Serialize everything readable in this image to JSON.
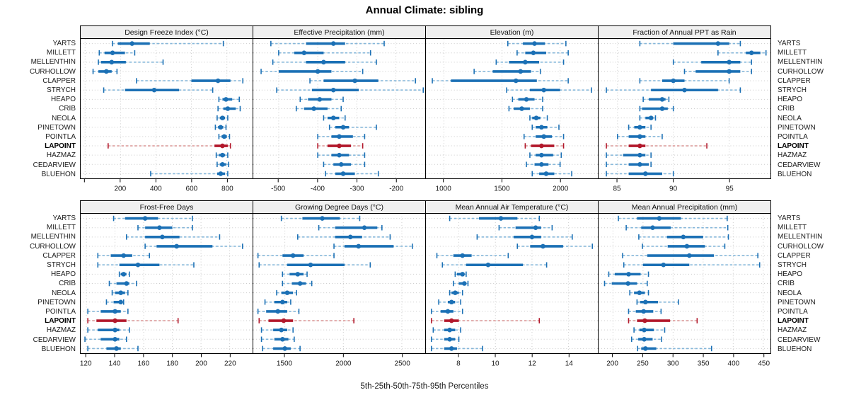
{
  "title": "Annual Climate: sibling",
  "xlabel": "5th-25th-50th-75th-95th Percentiles",
  "colors": {
    "series": "#1b70b5",
    "series_whisker": "#85b7da",
    "highlight": "#b2182b",
    "highlight_whisker": "#dc9a99",
    "strip_bg": "#f0f0f0",
    "grid": "#c9c9c9",
    "panel_border": "#000000"
  },
  "chart_data": {
    "type": "dotplot-percentiles",
    "percentiles": [
      5,
      25,
      50,
      75,
      95
    ],
    "layout": "2 rows x 4 cols, station labels on both sides",
    "grid": true,
    "stations": [
      "YARTS",
      "MILLETT",
      "MELLENTHIN",
      "CURHOLLOW",
      "CLAPPER",
      "STRYCH",
      "HEAPO",
      "CRIB",
      "NEOLA",
      "PINETOWN",
      "POINTLA",
      "LAPOINT",
      "HAZMAZ",
      "CEDARVIEW",
      "BLUEHON"
    ],
    "highlight_station": "LAPOINT",
    "panels": [
      {
        "title": "Design Freeze Index (°C)",
        "xlim": [
          -25,
          945
        ],
        "ticks": [
          200,
          400,
          600,
          800
        ],
        "unlabeled_ticks": [
          0
        ],
        "values": [
          [
            155,
            185,
            265,
            365,
            780
          ],
          [
            80,
            110,
            155,
            225,
            280
          ],
          [
            75,
            90,
            150,
            230,
            440
          ],
          [
            45,
            75,
            120,
            150,
            180
          ],
          [
            290,
            600,
            750,
            820,
            890
          ],
          [
            105,
            225,
            390,
            530,
            720
          ],
          [
            755,
            775,
            795,
            830,
            870
          ],
          [
            750,
            780,
            805,
            850,
            875
          ],
          [
            745,
            760,
            775,
            790,
            805
          ],
          [
            735,
            750,
            765,
            780,
            795
          ],
          [
            755,
            770,
            785,
            800,
            815
          ],
          [
            130,
            730,
            775,
            805,
            820
          ],
          [
            740,
            755,
            775,
            790,
            805
          ],
          [
            745,
            760,
            775,
            795,
            810
          ],
          [
            370,
            745,
            765,
            790,
            805
          ]
        ]
      },
      {
        "title": "Effective Precipitation (mm)",
        "xlim": [
          -565,
          -125
        ],
        "ticks": [
          -500,
          -400,
          -300,
          -200
        ],
        "unlabeled_ticks": [],
        "values": [
          [
            -520,
            -430,
            -360,
            -330,
            -230
          ],
          [
            -500,
            -460,
            -435,
            -385,
            -265
          ],
          [
            -515,
            -430,
            -385,
            -330,
            -250
          ],
          [
            -545,
            -500,
            -400,
            -365,
            -285
          ],
          [
            -420,
            -385,
            -305,
            -245,
            -150
          ],
          [
            -505,
            -415,
            -360,
            -295,
            -130
          ],
          [
            -445,
            -425,
            -395,
            -365,
            -335
          ],
          [
            -455,
            -435,
            -410,
            -375,
            -340
          ],
          [
            -385,
            -375,
            -360,
            -345,
            -330
          ],
          [
            -370,
            -355,
            -335,
            -320,
            -250
          ],
          [
            -400,
            -365,
            -345,
            -310,
            -280
          ],
          [
            -400,
            -375,
            -345,
            -315,
            -285
          ],
          [
            -400,
            -365,
            -345,
            -320,
            -280
          ],
          [
            -385,
            -360,
            -340,
            -315,
            -280
          ],
          [
            -380,
            -355,
            -335,
            -305,
            -245
          ]
        ]
      },
      {
        "title": "Elevation (m)",
        "xlim": [
          845,
          2325
        ],
        "ticks": [
          1000,
          1500,
          2000
        ],
        "unlabeled_ticks": [],
        "values": [
          [
            1550,
            1680,
            1780,
            1870,
            2050
          ],
          [
            1630,
            1700,
            1770,
            1880,
            2070
          ],
          [
            1450,
            1560,
            1700,
            1820,
            2030
          ],
          [
            1260,
            1420,
            1660,
            1750,
            1830
          ],
          [
            900,
            1060,
            1620,
            1800,
            2070
          ],
          [
            1540,
            1740,
            1860,
            2000,
            2270
          ],
          [
            1590,
            1640,
            1710,
            1780,
            1850
          ],
          [
            1560,
            1600,
            1670,
            1740,
            1850
          ],
          [
            1740,
            1760,
            1795,
            1830,
            1890
          ],
          [
            1760,
            1790,
            1840,
            1890,
            1990
          ],
          [
            1690,
            1790,
            1860,
            1930,
            2030
          ],
          [
            1700,
            1750,
            1840,
            1950,
            2030
          ],
          [
            1740,
            1790,
            1840,
            1940,
            2010
          ],
          [
            1710,
            1780,
            1840,
            1900,
            2000
          ],
          [
            1760,
            1820,
            1880,
            1950,
            2100
          ]
        ]
      },
      {
        "title": "Fraction of Annual PPT as Rain",
        "xlim": [
          83.3,
          98.7
        ],
        "ticks": [
          85,
          90,
          95
        ],
        "unlabeled_ticks": [],
        "values": [
          [
            87,
            90,
            94,
            95,
            96
          ],
          [
            94,
            96.5,
            97,
            97.8,
            98.3
          ],
          [
            90,
            92.5,
            95,
            96,
            97
          ],
          [
            91,
            92,
            95,
            96,
            97
          ],
          [
            87,
            89,
            90,
            91,
            95
          ],
          [
            84,
            88,
            91,
            94,
            96
          ],
          [
            87.3,
            87.8,
            89,
            89.3,
            89.6
          ],
          [
            87,
            87.2,
            89,
            89.5,
            90
          ],
          [
            87,
            87.5,
            88,
            88.2,
            88.4
          ],
          [
            86,
            86.5,
            87,
            87.5,
            88
          ],
          [
            85,
            86,
            87,
            87.5,
            89
          ],
          [
            84,
            86,
            87,
            87.5,
            93
          ],
          [
            84,
            85.5,
            87,
            87.5,
            88
          ],
          [
            84,
            86,
            87,
            87.8,
            88
          ],
          [
            84,
            86,
            87.5,
            89,
            90
          ]
        ]
      },
      {
        "title": "Frost-Free Days",
        "xlim": [
          116,
          236
        ],
        "ticks": [
          120,
          140,
          160,
          180,
          200,
          220
        ],
        "unlabeled_ticks": [],
        "values": [
          [
            139,
            147,
            161,
            170,
            194
          ],
          [
            156,
            161,
            171,
            180,
            194
          ],
          [
            148,
            161,
            173,
            185,
            213
          ],
          [
            161,
            169,
            183,
            208,
            229
          ],
          [
            128,
            137,
            146,
            152,
            164
          ],
          [
            128,
            143,
            156,
            171,
            195
          ],
          [
            143,
            144,
            146,
            148,
            150
          ],
          [
            136,
            141,
            148,
            150,
            155
          ],
          [
            138,
            140,
            144,
            147,
            149
          ],
          [
            134,
            139,
            144,
            145,
            146
          ],
          [
            121,
            130,
            140,
            144,
            149
          ],
          [
            121,
            127,
            140,
            148,
            184
          ],
          [
            121,
            128,
            140,
            143,
            150
          ],
          [
            119,
            130,
            140,
            143,
            148
          ],
          [
            121,
            134,
            141,
            144,
            156
          ]
        ]
      },
      {
        "title": "Growing Degree Days (°C)",
        "xlim": [
          1230,
          2700
        ],
        "ticks": [
          1500,
          2000,
          2500
        ],
        "unlabeled_ticks": [],
        "values": [
          [
            1470,
            1650,
            1820,
            1970,
            2140
          ],
          [
            1790,
            1930,
            2180,
            2290,
            2330
          ],
          [
            1610,
            1930,
            2060,
            2160,
            2400
          ],
          [
            1920,
            2010,
            2130,
            2430,
            2590
          ],
          [
            1270,
            1480,
            1570,
            1660,
            1920
          ],
          [
            1280,
            1520,
            1720,
            2010,
            2230
          ],
          [
            1480,
            1540,
            1610,
            1660,
            1690
          ],
          [
            1480,
            1560,
            1630,
            1680,
            1730
          ],
          [
            1430,
            1470,
            1520,
            1570,
            1600
          ],
          [
            1330,
            1410,
            1480,
            1520,
            1550
          ],
          [
            1270,
            1340,
            1440,
            1520,
            1620
          ],
          [
            1280,
            1360,
            1490,
            1570,
            2090
          ],
          [
            1300,
            1400,
            1470,
            1520,
            1570
          ],
          [
            1300,
            1410,
            1480,
            1530,
            1580
          ],
          [
            1310,
            1400,
            1500,
            1550,
            1630
          ]
        ]
      },
      {
        "title": "Mean Annual Air Temperature (°C)",
        "xlim": [
          6.2,
          15.6
        ],
        "ticks": [
          8,
          10,
          12,
          14
        ],
        "unlabeled_ticks": [],
        "values": [
          [
            7.5,
            9.1,
            10.3,
            11.2,
            12.4
          ],
          [
            10.2,
            11.1,
            12.2,
            12.5,
            13.1
          ],
          [
            9.0,
            11.0,
            12.0,
            12.5,
            14.2
          ],
          [
            11.2,
            11.9,
            12.6,
            13.7,
            15.3
          ],
          [
            6.8,
            7.7,
            8.2,
            8.7,
            10.7
          ],
          [
            7.1,
            8.4,
            9.6,
            11.5,
            12.8
          ],
          [
            7.8,
            7.9,
            8.2,
            8.3,
            8.4
          ],
          [
            7.7,
            8.0,
            8.3,
            8.4,
            8.5
          ],
          [
            7.5,
            7.6,
            7.8,
            8.0,
            8.2
          ],
          [
            6.9,
            7.4,
            7.6,
            7.8,
            8.1
          ],
          [
            6.5,
            7.0,
            7.4,
            7.7,
            8.2
          ],
          [
            6.5,
            7.2,
            7.6,
            8.0,
            12.4
          ],
          [
            6.6,
            7.2,
            7.5,
            7.8,
            8.1
          ],
          [
            6.5,
            7.2,
            7.5,
            7.8,
            8.0
          ],
          [
            6.5,
            7.2,
            7.6,
            7.9,
            9.3
          ]
        ]
      },
      {
        "title": "Mean Annual Precipitation (mm)",
        "xlim": [
          176,
          462
        ],
        "ticks": [
          200,
          250,
          300,
          350,
          400,
          450
        ],
        "unlabeled_ticks": [],
        "values": [
          [
            209,
            240,
            277,
            313,
            390
          ],
          [
            222,
            247,
            266,
            296,
            391
          ],
          [
            243,
            290,
            317,
            350,
            392
          ],
          [
            249,
            291,
            323,
            353,
            386
          ],
          [
            216,
            257,
            327,
            368,
            441
          ],
          [
            218,
            250,
            284,
            327,
            444
          ],
          [
            193,
            203,
            226,
            246,
            259
          ],
          [
            186,
            198,
            225,
            240,
            257
          ],
          [
            228,
            235,
            244,
            253,
            259
          ],
          [
            240,
            245,
            254,
            275,
            309
          ],
          [
            226,
            238,
            251,
            267,
            280
          ],
          [
            226,
            240,
            253,
            295,
            340
          ],
          [
            235,
            244,
            252,
            268,
            286
          ],
          [
            231,
            242,
            252,
            266,
            281
          ],
          [
            241,
            247,
            254,
            272,
            364
          ]
        ]
      }
    ]
  }
}
